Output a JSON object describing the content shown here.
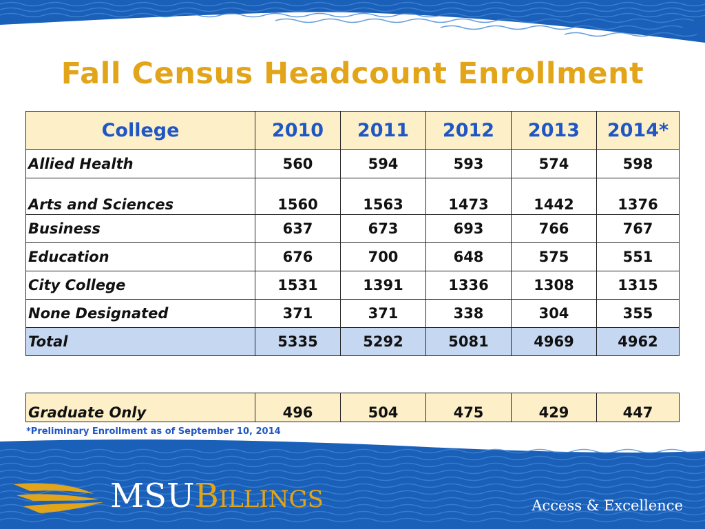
{
  "title": "Fall Census Headcount Enrollment",
  "table": {
    "headers": [
      "College",
      "2010",
      "2011",
      "2012",
      "2013",
      "2014*"
    ],
    "rows": [
      {
        "label": "Allied Health",
        "values": [
          "560",
          "594",
          "593",
          "574",
          "598"
        ]
      },
      {
        "label": "Arts and Sciences",
        "values": [
          "1560",
          "1563",
          "1473",
          "1442",
          "1376"
        ]
      },
      {
        "label": "Business",
        "values": [
          "637",
          "673",
          "693",
          "766",
          "767"
        ]
      },
      {
        "label": "Education",
        "values": [
          "676",
          "700",
          "648",
          "575",
          "551"
        ]
      },
      {
        "label": "City College",
        "values": [
          "1531",
          "1391",
          "1336",
          "1308",
          "1315"
        ]
      },
      {
        "label": "None Designated",
        "values": [
          "371",
          "371",
          "338",
          "304",
          "355"
        ]
      }
    ],
    "total": {
      "label": "Total",
      "values": [
        "5335",
        "5292",
        "5081",
        "4969",
        "4962"
      ]
    }
  },
  "graduate": {
    "label": "Graduate Only",
    "values": [
      "496",
      "504",
      "475",
      "429",
      "447"
    ]
  },
  "footnote": "*Preliminary Enrollment as of September 10, 2014",
  "brand": {
    "msu": "MSU",
    "billings": "Billings",
    "tagline": "Access & Excellence"
  },
  "colors": {
    "title": "#e2a51a",
    "header_text": "#1f56c4",
    "header_bg": "#fdf0c8",
    "total_bg": "#c6d8f1",
    "wave": "#1a5fb8"
  }
}
